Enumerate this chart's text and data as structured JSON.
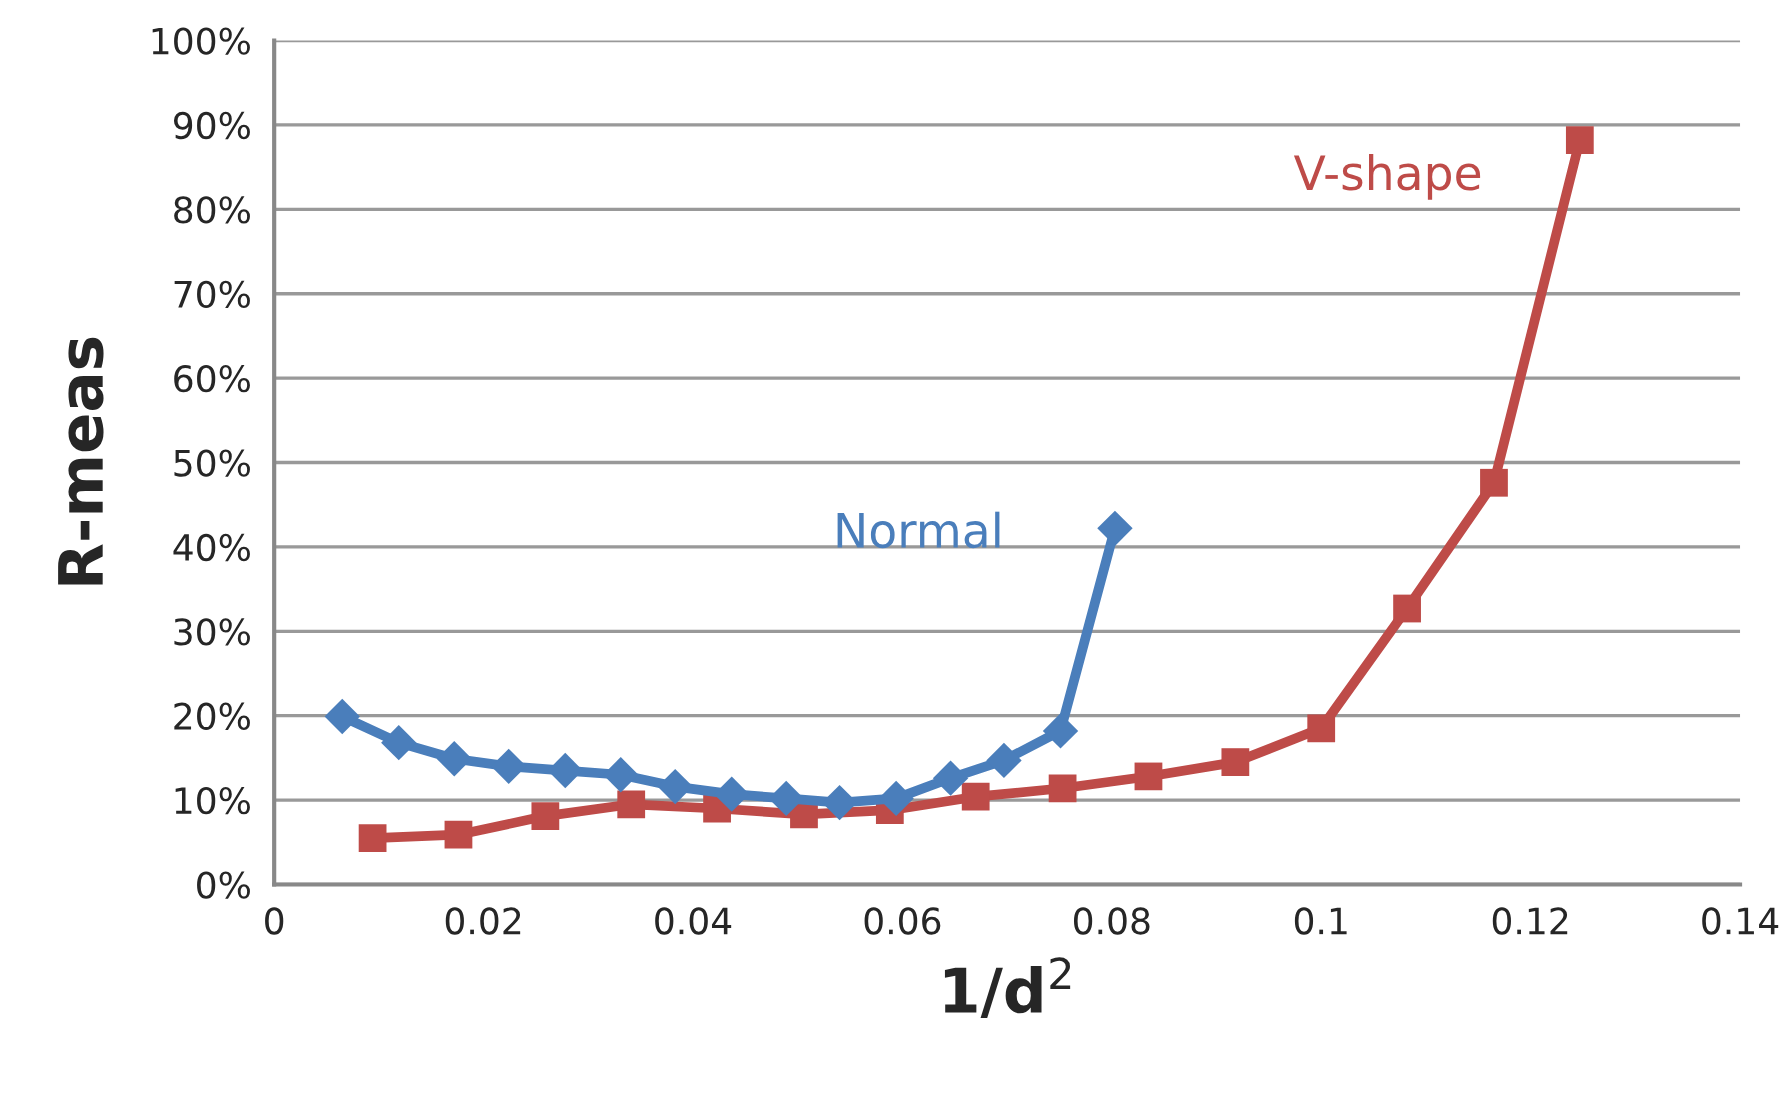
{
  "chart_data": {
    "type": "line",
    "xlabel": "1/d$^{2}$",
    "ylabel": "R-meas",
    "xlim": [
      0,
      0.14
    ],
    "xticks": [
      0,
      0.02,
      0.04,
      0.06,
      0.08,
      0.1,
      0.12,
      0.14
    ],
    "ylim": [
      0,
      100
    ],
    "yticks": [
      {
        "value": 0,
        "label": "0%"
      },
      {
        "value": 10,
        "label": "10%"
      },
      {
        "value": 20,
        "label": "20%"
      },
      {
        "value": 30,
        "label": "30%"
      },
      {
        "value": 40,
        "label": "40%"
      },
      {
        "value": 50,
        "label": "50%"
      },
      {
        "value": 60,
        "label": "60%"
      },
      {
        "value": 70,
        "label": "70%"
      },
      {
        "value": 80,
        "label": "80%"
      },
      {
        "value": 90,
        "label": "90%"
      },
      {
        "value": 100,
        "label": "100%"
      }
    ],
    "grid": "y",
    "line_style": "solid",
    "series": [
      {
        "name": "Normal",
        "color": "#4a7ebb",
        "marker": "diamond",
        "x": [
          0.0065,
          0.0119,
          0.0172,
          0.0224,
          0.0278,
          0.0331,
          0.0383,
          0.0437,
          0.0489,
          0.054,
          0.0594,
          0.0646,
          0.0697,
          0.0751,
          0.0803
        ],
        "values": [
          19.9,
          16.8,
          14.9,
          14.0,
          13.5,
          13.0,
          11.6,
          10.7,
          10.2,
          9.7,
          10.2,
          12.6,
          14.7,
          18.2,
          42.2
        ]
      },
      {
        "name": "V-shape",
        "color": "#be4b48",
        "marker": "square",
        "x": [
          0.0094,
          0.0176,
          0.0259,
          0.0341,
          0.0423,
          0.0506,
          0.0588,
          0.067,
          0.0753,
          0.0835,
          0.0918,
          0.1,
          0.1082,
          0.1165,
          0.1247
        ],
        "values": [
          5.5,
          5.9,
          8.1,
          9.5,
          9.0,
          8.3,
          8.8,
          10.4,
          11.4,
          12.8,
          14.5,
          18.5,
          32.7,
          47.6,
          88.2
        ]
      }
    ]
  }
}
